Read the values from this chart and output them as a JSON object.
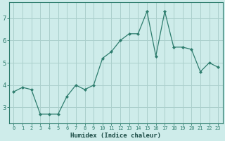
{
  "x": [
    0,
    1,
    2,
    3,
    4,
    5,
    6,
    7,
    8,
    9,
    10,
    11,
    12,
    13,
    14,
    15,
    16,
    17,
    18,
    19,
    20,
    21,
    22,
    23
  ],
  "y": [
    3.7,
    3.9,
    3.8,
    2.7,
    2.7,
    2.7,
    3.5,
    4.0,
    3.8,
    4.0,
    5.2,
    5.5,
    6.0,
    6.3,
    6.3,
    7.3,
    5.3,
    7.3,
    5.7,
    5.7,
    5.6,
    4.6,
    5.0,
    4.8
  ],
  "xlabel": "Humidex (Indice chaleur)",
  "line_color": "#2e7d6e",
  "marker": "D",
  "marker_size": 2.0,
  "bg_color": "#ceecea",
  "grid_color": "#aacfcc",
  "spine_color": "#2e7d6e",
  "label_color": "#1a4a44",
  "xlim": [
    -0.5,
    23.5
  ],
  "ylim": [
    2.3,
    7.7
  ],
  "yticks": [
    3,
    4,
    5,
    6,
    7
  ],
  "xticks": [
    0,
    1,
    2,
    3,
    4,
    5,
    6,
    7,
    8,
    9,
    10,
    11,
    12,
    13,
    14,
    15,
    16,
    17,
    18,
    19,
    20,
    21,
    22,
    23
  ],
  "xlabel_fontsize": 6.5,
  "xtick_fontsize": 5.0,
  "ytick_fontsize": 6.5
}
